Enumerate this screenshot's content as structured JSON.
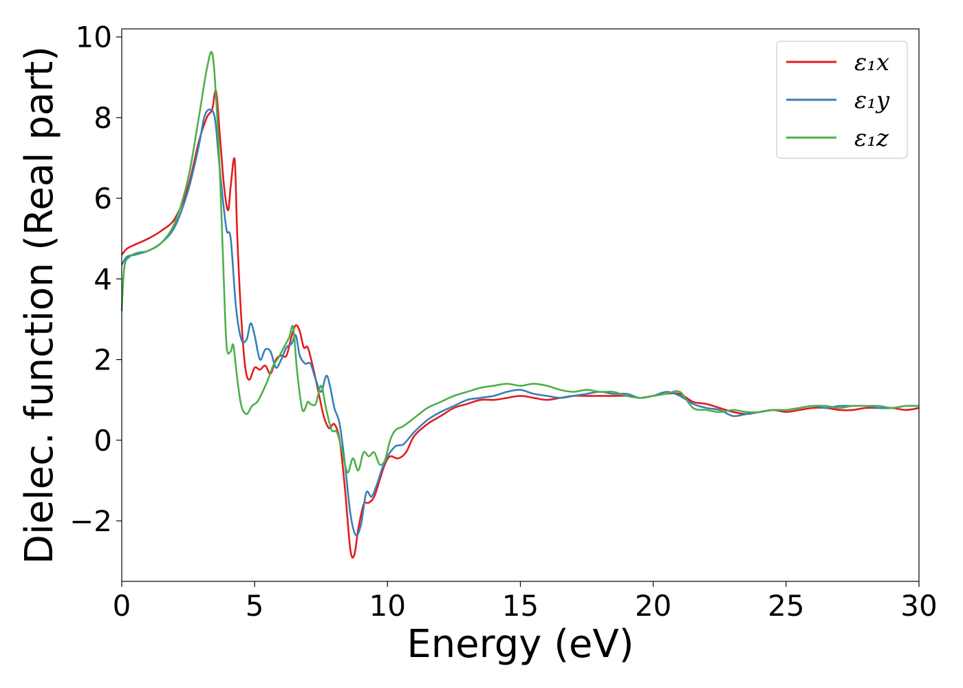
{
  "chart_data": {
    "type": "line",
    "xlabel": "Energy (eV)",
    "ylabel": "Dielec. function (Real part)",
    "xlim": [
      0,
      30
    ],
    "ylim": [
      -3.5,
      10.2
    ],
    "xticks": [
      0,
      5,
      10,
      15,
      20,
      25,
      30
    ],
    "xtick_labels": [
      "0",
      "5",
      "10",
      "15",
      "20",
      "25",
      "30"
    ],
    "yticks": [
      -2,
      0,
      2,
      4,
      6,
      8,
      10
    ],
    "ytick_labels": [
      "−2",
      "0",
      "2",
      "4",
      "6",
      "8",
      "10"
    ],
    "grid": false,
    "legend_position": "top-right",
    "series": [
      {
        "name": "ε₁x",
        "color": "#e41a1c",
        "x": [
          0,
          0.2,
          0.5,
          1.0,
          1.5,
          2.0,
          2.5,
          2.9,
          3.2,
          3.4,
          3.55,
          3.7,
          3.85,
          4.0,
          4.1,
          4.25,
          4.35,
          4.5,
          4.65,
          4.8,
          5.0,
          5.2,
          5.4,
          5.6,
          5.8,
          6.0,
          6.2,
          6.4,
          6.55,
          6.7,
          6.85,
          7.0,
          7.2,
          7.4,
          7.6,
          7.8,
          8.0,
          8.2,
          8.4,
          8.6,
          8.75,
          8.9,
          9.1,
          9.3,
          9.5,
          9.7,
          9.9,
          10.1,
          10.4,
          10.7,
          11.0,
          11.5,
          12.0,
          12.5,
          13.0,
          13.5,
          14.0,
          14.5,
          15.0,
          15.5,
          16.0,
          16.5,
          17.0,
          17.5,
          18.0,
          18.5,
          19.0,
          19.5,
          20.0,
          20.5,
          21.0,
          21.5,
          22.0,
          22.5,
          23.0,
          23.5,
          24.0,
          24.5,
          25.0,
          25.5,
          26.0,
          26.5,
          27.0,
          27.5,
          28.0,
          28.5,
          29.0,
          29.5,
          30.0
        ],
        "y": [
          4.6,
          4.75,
          4.85,
          5.0,
          5.2,
          5.5,
          6.3,
          7.4,
          8.0,
          8.2,
          8.65,
          7.5,
          6.3,
          5.7,
          6.3,
          6.95,
          5.0,
          3.0,
          1.8,
          1.5,
          1.8,
          1.75,
          1.85,
          1.65,
          2.0,
          2.1,
          2.1,
          2.6,
          2.85,
          2.7,
          2.3,
          2.3,
          1.8,
          1.2,
          0.6,
          0.3,
          0.4,
          0.0,
          -1.2,
          -2.7,
          -2.85,
          -2.2,
          -1.6,
          -1.55,
          -1.4,
          -1.0,
          -0.6,
          -0.4,
          -0.45,
          -0.3,
          0.1,
          0.4,
          0.6,
          0.8,
          0.9,
          1.0,
          1.0,
          1.05,
          1.1,
          1.05,
          1.0,
          1.05,
          1.1,
          1.1,
          1.1,
          1.1,
          1.1,
          1.05,
          1.1,
          1.15,
          1.15,
          0.95,
          0.9,
          0.8,
          0.7,
          0.65,
          0.7,
          0.75,
          0.7,
          0.75,
          0.8,
          0.8,
          0.75,
          0.75,
          0.8,
          0.8,
          0.8,
          0.75,
          0.8
        ]
      },
      {
        "name": "ε₁y",
        "color": "#377eb8",
        "x": [
          0,
          0.2,
          0.5,
          1.0,
          1.5,
          2.0,
          2.5,
          2.9,
          3.1,
          3.3,
          3.5,
          3.65,
          3.8,
          3.95,
          4.1,
          4.3,
          4.5,
          4.7,
          4.85,
          5.0,
          5.2,
          5.4,
          5.6,
          5.8,
          6.0,
          6.2,
          6.4,
          6.55,
          6.7,
          6.9,
          7.1,
          7.3,
          7.5,
          7.7,
          7.85,
          8.0,
          8.2,
          8.4,
          8.6,
          8.8,
          9.0,
          9.2,
          9.4,
          9.6,
          9.8,
          10.0,
          10.3,
          10.6,
          11.0,
          11.5,
          12.0,
          12.5,
          13.0,
          13.5,
          14.0,
          14.5,
          15.0,
          15.5,
          16.0,
          16.5,
          17.0,
          17.5,
          18.0,
          18.5,
          19.0,
          19.5,
          20.0,
          20.5,
          21.0,
          21.5,
          22.0,
          22.5,
          23.0,
          23.5,
          24.0,
          24.5,
          25.0,
          25.5,
          26.0,
          26.5,
          27.0,
          27.5,
          28.0,
          28.5,
          29.0,
          29.5,
          30.0
        ],
        "y": [
          4.35,
          4.55,
          4.6,
          4.7,
          4.9,
          5.3,
          6.2,
          7.3,
          8.0,
          8.2,
          8.0,
          7.0,
          6.0,
          5.2,
          5.0,
          3.3,
          2.5,
          2.5,
          2.9,
          2.6,
          2.0,
          2.25,
          2.2,
          1.8,
          2.0,
          2.3,
          2.4,
          2.6,
          2.1,
          1.9,
          1.9,
          1.5,
          1.2,
          1.6,
          1.3,
          0.8,
          0.4,
          -0.6,
          -1.8,
          -2.35,
          -2.1,
          -1.3,
          -1.4,
          -1.1,
          -0.7,
          -0.4,
          -0.15,
          -0.1,
          0.2,
          0.5,
          0.7,
          0.85,
          1.0,
          1.05,
          1.1,
          1.2,
          1.25,
          1.15,
          1.1,
          1.05,
          1.1,
          1.15,
          1.2,
          1.15,
          1.15,
          1.05,
          1.1,
          1.2,
          1.1,
          0.9,
          0.8,
          0.75,
          0.6,
          0.65,
          0.7,
          0.75,
          0.75,
          0.8,
          0.85,
          0.8,
          0.85,
          0.85,
          0.85,
          0.8,
          0.8,
          0.85,
          0.85
        ]
      },
      {
        "name": "ε₁z",
        "color": "#4daf4a",
        "x": [
          0,
          0.1,
          0.3,
          0.6,
          1.0,
          1.5,
          2.0,
          2.5,
          2.9,
          3.2,
          3.4,
          3.55,
          3.7,
          3.85,
          3.95,
          4.1,
          4.2,
          4.35,
          4.5,
          4.7,
          4.9,
          5.1,
          5.3,
          5.5,
          5.7,
          5.9,
          6.1,
          6.3,
          6.45,
          6.6,
          6.8,
          7.0,
          7.1,
          7.3,
          7.5,
          7.7,
          7.9,
          8.1,
          8.3,
          8.5,
          8.7,
          8.9,
          9.1,
          9.3,
          9.5,
          9.7,
          9.9,
          10.1,
          10.3,
          10.6,
          11.0,
          11.5,
          12.0,
          12.5,
          13.0,
          13.5,
          14.0,
          14.5,
          15.0,
          15.5,
          16.0,
          16.5,
          17.0,
          17.5,
          18.0,
          18.5,
          19.0,
          19.5,
          20.0,
          20.5,
          21.0,
          21.5,
          22.0,
          22.5,
          23.0,
          23.5,
          24.0,
          24.5,
          25.0,
          25.5,
          26.0,
          26.5,
          27.0,
          27.5,
          28.0,
          28.5,
          29.0,
          29.5,
          30.0
        ],
        "y": [
          3.2,
          4.3,
          4.55,
          4.65,
          4.7,
          4.9,
          5.4,
          6.5,
          8.0,
          9.2,
          9.6,
          8.5,
          6.5,
          3.8,
          2.3,
          2.2,
          2.35,
          1.5,
          0.85,
          0.65,
          0.85,
          0.95,
          1.2,
          1.5,
          1.85,
          2.05,
          2.3,
          2.55,
          2.8,
          1.7,
          0.75,
          0.95,
          0.9,
          0.9,
          1.35,
          0.75,
          0.25,
          0.2,
          -0.3,
          -0.8,
          -0.45,
          -0.75,
          -0.3,
          -0.4,
          -0.3,
          -0.6,
          -0.5,
          0.0,
          0.25,
          0.35,
          0.55,
          0.8,
          0.95,
          1.1,
          1.2,
          1.3,
          1.35,
          1.4,
          1.35,
          1.4,
          1.35,
          1.25,
          1.2,
          1.25,
          1.2,
          1.2,
          1.1,
          1.05,
          1.1,
          1.15,
          1.2,
          0.8,
          0.75,
          0.7,
          0.75,
          0.7,
          0.7,
          0.75,
          0.75,
          0.8,
          0.85,
          0.85,
          0.8,
          0.85,
          0.85,
          0.85,
          0.8,
          0.85,
          0.85
        ]
      }
    ]
  }
}
